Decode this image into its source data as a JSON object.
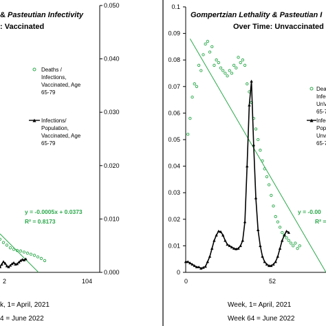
{
  "colors": {
    "deaths_marker": "#2aa84a",
    "trendline": "#2aa84a",
    "infections_line": "#000000",
    "divider": "#000000"
  },
  "left_panel": {
    "title_line1_plain": "& ",
    "title_line1_italic": "Pasteutian Infectivity",
    "title_line2": ": Vaccinated",
    "legend_deaths": [
      "Deaths /",
      "Infections,",
      "Vaccinated, Age",
      "65-79"
    ],
    "legend_infections": [
      "Infections/",
      "Population,",
      "Vaccinated, Age",
      "65-79"
    ],
    "equation": "y = -0.0005x + 0.0373",
    "r_squared": "R² = 0.8173",
    "x_ticks": [
      "2",
      "104"
    ],
    "xlabel_line1": "Week, 1= April, 2021",
    "xlabel_line2": "Week 64 = June 2022",
    "xlabel_left_fragment_1": "k, 1= April, 2021",
    "xlabel_left_fragment_2": "4 = June 2022",
    "right_axis_ticks": [
      "0.050",
      "0.040",
      "0.030",
      "0.020",
      "0.010",
      "0.000"
    ]
  },
  "right_panel": {
    "title_line1_italic": "Gompertzian Lethality & Pasteutian I",
    "title_line2": "Over Time: Unvaccinated",
    "legend_deaths": [
      "Deat",
      "Infec",
      "UnV",
      "65-7"
    ],
    "legend_infections": [
      "Infec",
      "Popu",
      "Unv",
      "65-7"
    ],
    "equation": "y = -0.00",
    "r_squared": "R² =",
    "y_ticks": [
      "0.1",
      "0.09",
      "0.08",
      "0.07",
      "0.06",
      "0.05",
      "0.04",
      "0.03",
      "0.02",
      "0.01",
      "0"
    ],
    "x_ticks": [
      "0",
      "52"
    ],
    "xlabel_line1": "Week, 1= April, 2021",
    "xlabel_line2": "Week 64 = June 2022"
  },
  "chart_data": [
    {
      "type": "line",
      "title": "& Pasteutian Infectivity : Vaccinated",
      "x_visible_ticks": [
        2,
        104
      ],
      "y2lim": [
        0,
        0.05
      ],
      "series": [
        {
          "name": "Deaths / Infections, Vaccinated, Age 65-79",
          "marker": "open-circle",
          "points": [
            [
              0,
              0.0062
            ],
            [
              4,
              0.0056
            ],
            [
              8,
              0.0051
            ],
            [
              12,
              0.0046
            ],
            [
              16,
              0.0043
            ],
            [
              20,
              0.0041
            ],
            [
              24,
              0.004
            ],
            [
              28,
              0.0038
            ],
            [
              32,
              0.0036
            ],
            [
              36,
              0.0034
            ],
            [
              40,
              0.0032
            ],
            [
              44,
              0.0029
            ],
            [
              48,
              0.0026
            ],
            [
              52,
              0.0022
            ]
          ]
        },
        {
          "name": "Infections/ Population, Vaccinated, Age 65-79",
          "marker": "triangle",
          "points": [
            [
              0,
              0.001
            ],
            [
              2,
              0.0015
            ],
            [
              4,
              0.002
            ],
            [
              6,
              0.0017
            ],
            [
              8,
              0.0012
            ],
            [
              10,
              0.001
            ],
            [
              12,
              0.0013
            ],
            [
              14,
              0.0016
            ],
            [
              16,
              0.0018
            ],
            [
              18,
              0.0015
            ],
            [
              20,
              0.0016
            ],
            [
              22,
              0.0019
            ],
            [
              24,
              0.0022
            ],
            [
              26,
              0.0024
            ],
            [
              28,
              0.0023
            ],
            [
              30,
              0.0025
            ]
          ]
        }
      ],
      "trendline": {
        "slope": -0.0005,
        "intercept": 0.0373
      }
    },
    {
      "type": "line",
      "title": "Gompertzian Lethality & Pasteutian I Over Time: Unvaccinated",
      "xlim": [
        0,
        64
      ],
      "ylim": [
        0,
        0.1
      ],
      "x_ticks": [
        0,
        52
      ],
      "y_ticks": [
        0,
        0.01,
        0.02,
        0.03,
        0.04,
        0.05,
        0.06,
        0.07,
        0.08,
        0.09,
        0.1
      ],
      "series": [
        {
          "name": "Deaths / Infections, UnVaccinated, Age 65-79",
          "marker": "open-circle",
          "points": [
            [
              1,
              0.052
            ],
            [
              2,
              0.058
            ],
            [
              3,
              0.066
            ],
            [
              4,
              0.071
            ],
            [
              5,
              0.07
            ],
            [
              6,
              0.078
            ],
            [
              7,
              0.076
            ],
            [
              8,
              0.082
            ],
            [
              9,
              0.086
            ],
            [
              10,
              0.087
            ],
            [
              11,
              0.083
            ],
            [
              12,
              0.085
            ],
            [
              13,
              0.078
            ],
            [
              14,
              0.08
            ],
            [
              15,
              0.079
            ],
            [
              16,
              0.077
            ],
            [
              17,
              0.076
            ],
            [
              18,
              0.075
            ],
            [
              19,
              0.074
            ],
            [
              20,
              0.076
            ],
            [
              21,
              0.075
            ],
            [
              22,
              0.078
            ],
            [
              23,
              0.077
            ],
            [
              24,
              0.081
            ],
            [
              25,
              0.079
            ],
            [
              26,
              0.08
            ],
            [
              27,
              0.078
            ],
            [
              28,
              0.071
            ],
            [
              29,
              0.068
            ],
            [
              30,
              0.064
            ],
            [
              31,
              0.058
            ],
            [
              32,
              0.054
            ],
            [
              33,
              0.05
            ],
            [
              34,
              0.046
            ],
            [
              35,
              0.042
            ],
            [
              36,
              0.039
            ],
            [
              37,
              0.036
            ],
            [
              38,
              0.033
            ],
            [
              39,
              0.029
            ],
            [
              40,
              0.025
            ],
            [
              41,
              0.021
            ],
            [
              42,
              0.019
            ],
            [
              43,
              0.017
            ],
            [
              44,
              0.015
            ],
            [
              45,
              0.014
            ],
            [
              46,
              0.013
            ],
            [
              47,
              0.012
            ],
            [
              48,
              0.011
            ],
            [
              49,
              0.01
            ],
            [
              50,
              0.011
            ],
            [
              51,
              0.009
            ],
            [
              52,
              0.01
            ]
          ]
        },
        {
          "name": "Infections/ Population, Unvaccinated, Age 65-79",
          "marker": "triangle",
          "points": [
            [
              0,
              0.004
            ],
            [
              1,
              0.004
            ],
            [
              2,
              0.0035
            ],
            [
              3,
              0.003
            ],
            [
              4,
              0.0025
            ],
            [
              5,
              0.002
            ],
            [
              6,
              0.002
            ],
            [
              7,
              0.0015
            ],
            [
              8,
              0.0018
            ],
            [
              9,
              0.0022
            ],
            [
              10,
              0.004
            ],
            [
              11,
              0.006
            ],
            [
              12,
              0.009
            ],
            [
              13,
              0.012
            ],
            [
              14,
              0.014
            ],
            [
              15,
              0.0155
            ],
            [
              16,
              0.0153
            ],
            [
              17,
              0.014
            ],
            [
              18,
              0.012
            ],
            [
              19,
              0.0105
            ],
            [
              20,
              0.01
            ],
            [
              21,
              0.0095
            ],
            [
              22,
              0.009
            ],
            [
              23,
              0.0088
            ],
            [
              24,
              0.009
            ],
            [
              25,
              0.01
            ],
            [
              26,
              0.012
            ],
            [
              27,
              0.019
            ],
            [
              28,
              0.04
            ],
            [
              29,
              0.063
            ],
            [
              30,
              0.072
            ],
            [
              31,
              0.048
            ],
            [
              32,
              0.028
            ],
            [
              33,
              0.016
            ],
            [
              34,
              0.01
            ],
            [
              35,
              0.006
            ],
            [
              36,
              0.004
            ],
            [
              37,
              0.003
            ],
            [
              38,
              0.0025
            ],
            [
              39,
              0.0025
            ],
            [
              40,
              0.003
            ],
            [
              41,
              0.004
            ],
            [
              42,
              0.006
            ],
            [
              43,
              0.009
            ],
            [
              44,
              0.012
            ],
            [
              45,
              0.014
            ],
            [
              46,
              0.0155
            ],
            [
              47,
              0.015
            ]
          ]
        }
      ],
      "trendline": {
        "x": [
          2,
          64
        ],
        "y": [
          0.088,
          0.0
        ]
      }
    }
  ]
}
